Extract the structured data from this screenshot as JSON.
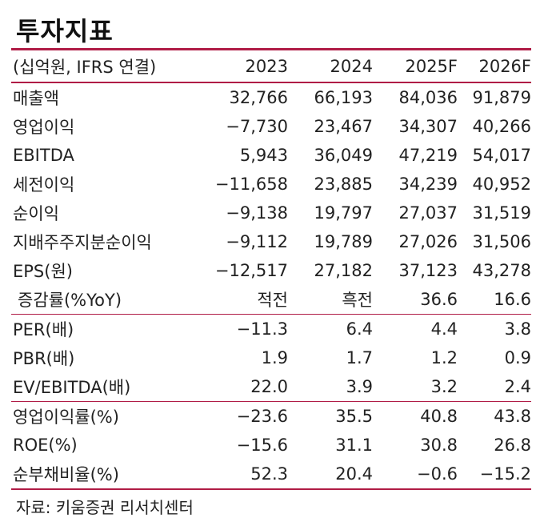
{
  "title": "투자지표",
  "header": {
    "unit": "(십억원, IFRS 연결)",
    "years": [
      "2023",
      "2024",
      "2025F",
      "2026F"
    ]
  },
  "rows": [
    {
      "label": "매출액",
      "values": [
        "32,766",
        "66,193",
        "84,036",
        "91,879"
      ]
    },
    {
      "label": "영업이익",
      "values": [
        "−7,730",
        "23,467",
        "34,307",
        "40,266"
      ]
    },
    {
      "label": "EBITDA",
      "values": [
        "5,943",
        "36,049",
        "47,219",
        "54,017"
      ]
    },
    {
      "label": "세전이익",
      "values": [
        "−11,658",
        "23,885",
        "34,239",
        "40,952"
      ]
    },
    {
      "label": "순이익",
      "values": [
        "−9,138",
        "19,797",
        "27,037",
        "31,519"
      ]
    },
    {
      "label": "지배주주지분순이익",
      "values": [
        "−9,112",
        "19,789",
        "27,026",
        "31,506"
      ]
    },
    {
      "label": "EPS(원)",
      "values": [
        "−12,517",
        "27,182",
        "37,123",
        "43,278"
      ]
    },
    {
      "label": "증감률(%YoY)",
      "values": [
        "적전",
        "흑전",
        "36.6",
        "16.6"
      ]
    },
    {
      "label": "PER(배)",
      "values": [
        "−11.3",
        "6.4",
        "4.4",
        "3.8"
      ]
    },
    {
      "label": "PBR(배)",
      "values": [
        "1.9",
        "1.7",
        "1.2",
        "0.9"
      ]
    },
    {
      "label": "EV/EBITDA(배)",
      "values": [
        "22.0",
        "3.9",
        "3.2",
        "2.4"
      ]
    },
    {
      "label": "영업이익률(%)",
      "values": [
        "−23.6",
        "35.5",
        "40.8",
        "43.8"
      ]
    },
    {
      "label": "ROE(%)",
      "values": [
        "−15.6",
        "31.1",
        "30.8",
        "26.8"
      ]
    },
    {
      "label": "순부채비율(%)",
      "values": [
        "52.3",
        "20.4",
        "−0.6",
        "−15.2"
      ]
    }
  ],
  "source": "자료: 키움증권 리서치센터"
}
